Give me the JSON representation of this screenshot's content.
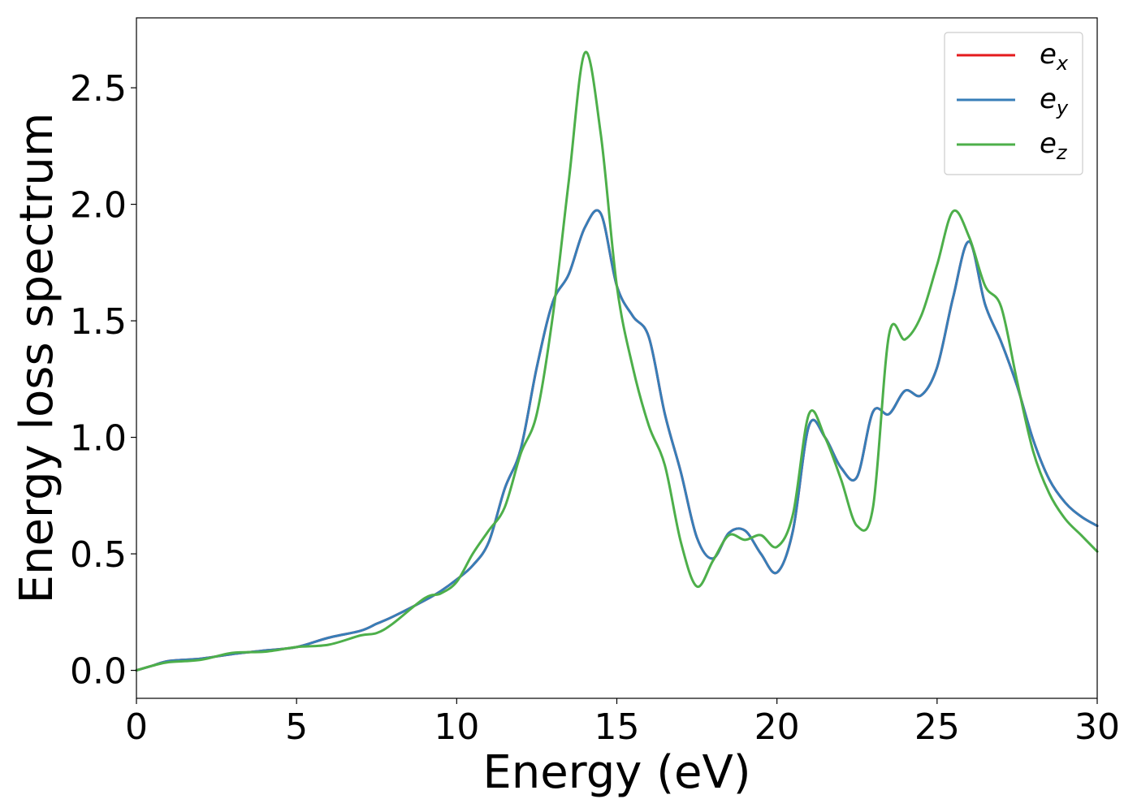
{
  "chart_data": {
    "type": "line",
    "title": "",
    "xlabel": "Energy (eV)",
    "ylabel": "Energy loss spectrum",
    "xlim": [
      0,
      30
    ],
    "ylim": [
      -0.12,
      2.8
    ],
    "xticks": [
      "0",
      "5",
      "10",
      "15",
      "20",
      "25",
      "30"
    ],
    "yticks": [
      "0.0",
      "0.5",
      "1.0",
      "1.5",
      "2.0",
      "2.5"
    ],
    "grid": false,
    "legend_position": "top-right",
    "series": [
      {
        "name": "e_x",
        "label_base": "e",
        "label_sub": "x",
        "color": "#e41a1c",
        "x": [
          0,
          0.5,
          1,
          2,
          3,
          4,
          5,
          6,
          7,
          7.5,
          8,
          9,
          9.5,
          10,
          10.5,
          11,
          11.5,
          12,
          12.5,
          13,
          13.5,
          14,
          14.5,
          15,
          15.5,
          16,
          16.5,
          17,
          17.5,
          18,
          18.5,
          19,
          19.5,
          20,
          20.5,
          21,
          21.5,
          22,
          22.5,
          23,
          23.5,
          24,
          24.5,
          25,
          25.5,
          26,
          26.5,
          27,
          27.5,
          28,
          28.5,
          29,
          29.5,
          30
        ],
        "y": [
          0.0,
          0.02,
          0.04,
          0.05,
          0.07,
          0.085,
          0.1,
          0.14,
          0.17,
          0.2,
          0.23,
          0.3,
          0.34,
          0.39,
          0.45,
          0.55,
          0.78,
          0.95,
          1.3,
          1.58,
          1.7,
          1.9,
          1.96,
          1.65,
          1.52,
          1.43,
          1.1,
          0.85,
          0.57,
          0.48,
          0.59,
          0.6,
          0.5,
          0.42,
          0.6,
          1.05,
          1.0,
          0.87,
          0.83,
          1.11,
          1.1,
          1.2,
          1.18,
          1.3,
          1.6,
          1.84,
          1.57,
          1.41,
          1.22,
          0.99,
          0.82,
          0.72,
          0.66,
          0.62
        ]
      },
      {
        "name": "e_y",
        "label_base": "e",
        "label_sub": "y",
        "color": "#377eb8",
        "x": [
          0,
          0.5,
          1,
          2,
          3,
          4,
          5,
          6,
          7,
          7.5,
          8,
          9,
          9.5,
          10,
          10.5,
          11,
          11.5,
          12,
          12.5,
          13,
          13.5,
          14,
          14.5,
          15,
          15.5,
          16,
          16.5,
          17,
          17.5,
          18,
          18.5,
          19,
          19.5,
          20,
          20.5,
          21,
          21.5,
          22,
          22.5,
          23,
          23.5,
          24,
          24.5,
          25,
          25.5,
          26,
          26.5,
          27,
          27.5,
          28,
          28.5,
          29,
          29.5,
          30
        ],
        "y": [
          0.0,
          0.02,
          0.04,
          0.05,
          0.07,
          0.085,
          0.1,
          0.14,
          0.17,
          0.2,
          0.23,
          0.3,
          0.34,
          0.39,
          0.45,
          0.55,
          0.78,
          0.95,
          1.3,
          1.58,
          1.7,
          1.9,
          1.96,
          1.65,
          1.52,
          1.43,
          1.1,
          0.85,
          0.57,
          0.48,
          0.59,
          0.6,
          0.5,
          0.42,
          0.6,
          1.05,
          1.0,
          0.87,
          0.83,
          1.11,
          1.1,
          1.2,
          1.18,
          1.3,
          1.6,
          1.84,
          1.57,
          1.41,
          1.22,
          0.99,
          0.82,
          0.72,
          0.66,
          0.62
        ]
      },
      {
        "name": "e_z",
        "label_base": "e",
        "label_sub": "z",
        "color": "#4daf4a",
        "x": [
          0,
          0.5,
          1,
          2,
          3,
          4,
          5,
          6,
          7,
          7.5,
          8,
          9,
          9.5,
          10,
          10.5,
          11,
          11.5,
          12,
          12.5,
          13,
          13.5,
          14,
          14.5,
          15,
          15.5,
          16,
          16.5,
          17,
          17.5,
          18,
          18.5,
          19,
          19.5,
          20,
          20.5,
          21,
          21.5,
          22,
          22.5,
          23,
          23.5,
          24,
          24.5,
          25,
          25.5,
          26,
          26.5,
          27,
          27.5,
          28,
          28.5,
          29,
          29.5,
          30
        ],
        "y": [
          0.0,
          0.02,
          0.035,
          0.045,
          0.075,
          0.08,
          0.1,
          0.11,
          0.15,
          0.16,
          0.2,
          0.31,
          0.33,
          0.38,
          0.5,
          0.6,
          0.7,
          0.93,
          1.1,
          1.52,
          2.1,
          2.65,
          2.3,
          1.65,
          1.3,
          1.05,
          0.88,
          0.55,
          0.36,
          0.47,
          0.58,
          0.56,
          0.58,
          0.53,
          0.67,
          1.1,
          1.0,
          0.82,
          0.62,
          0.7,
          1.44,
          1.42,
          1.52,
          1.74,
          1.97,
          1.86,
          1.65,
          1.56,
          1.24,
          0.94,
          0.76,
          0.65,
          0.58,
          0.51
        ]
      }
    ]
  }
}
